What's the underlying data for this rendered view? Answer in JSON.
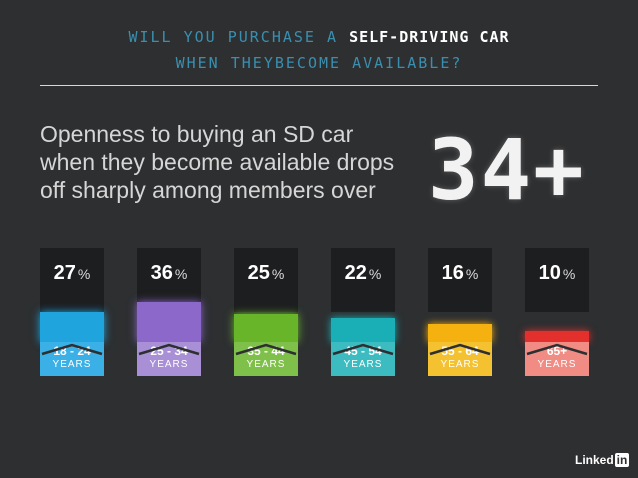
{
  "header": {
    "line1_prefix": "WILL YOU PURCHASE A",
    "line1_highlight": "SELF-DRIVING CAR",
    "line2": "WHEN THEYBECOME AVAILABLE?"
  },
  "headline": {
    "line1": "Openness to buying an SD car",
    "line2": "when they become available drops",
    "line3": "off sharply among members over"
  },
  "big_number": "34+",
  "logo": {
    "text": "Linked",
    "box": "in"
  },
  "chart_data": {
    "type": "bar",
    "categories": [
      "18 - 24",
      "25 - 34",
      "35 - 44",
      "45 - 54",
      "55 - 64",
      "65+"
    ],
    "category_suffix": "YEARS",
    "values": [
      27,
      36,
      25,
      22,
      16,
      10
    ],
    "value_suffix": "%",
    "colors": [
      "#1fa4de",
      "#8b68c9",
      "#68b52a",
      "#1aaeb6",
      "#f5b10f",
      "#e4302d"
    ],
    "label_colors": [
      "#3ab0e6",
      "#a98fd6",
      "#7fc04a",
      "#3cbcc0",
      "#f4c131",
      "#f08c84"
    ],
    "ylim": [
      0,
      36
    ]
  }
}
